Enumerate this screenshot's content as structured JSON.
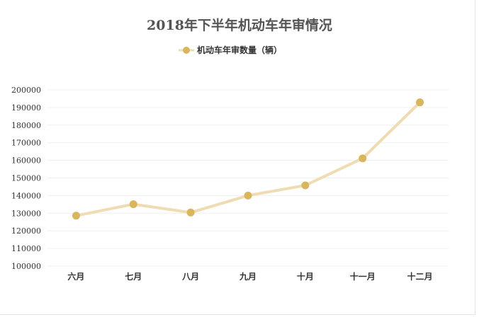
{
  "chart_data": {
    "type": "line",
    "title": "2018年下半年机动车年审情况",
    "categories": [
      "六月",
      "七月",
      "八月",
      "九月",
      "十月",
      "十一月",
      "十二月"
    ],
    "series": [
      {
        "name": "机动车年审数量（辆）",
        "values": [
          128600,
          135100,
          130400,
          140000,
          145800,
          161100,
          192900
        ]
      }
    ],
    "ylim": [
      100000,
      200000
    ],
    "yticks": [
      100000,
      110000,
      120000,
      130000,
      140000,
      150000,
      160000,
      170000,
      180000,
      190000,
      200000
    ],
    "grid": true,
    "legend": "top-center",
    "colors": {
      "line": "#efdcb2",
      "marker": "#d9b55e",
      "grid": "#f0f0f0",
      "title": "#555555"
    }
  }
}
